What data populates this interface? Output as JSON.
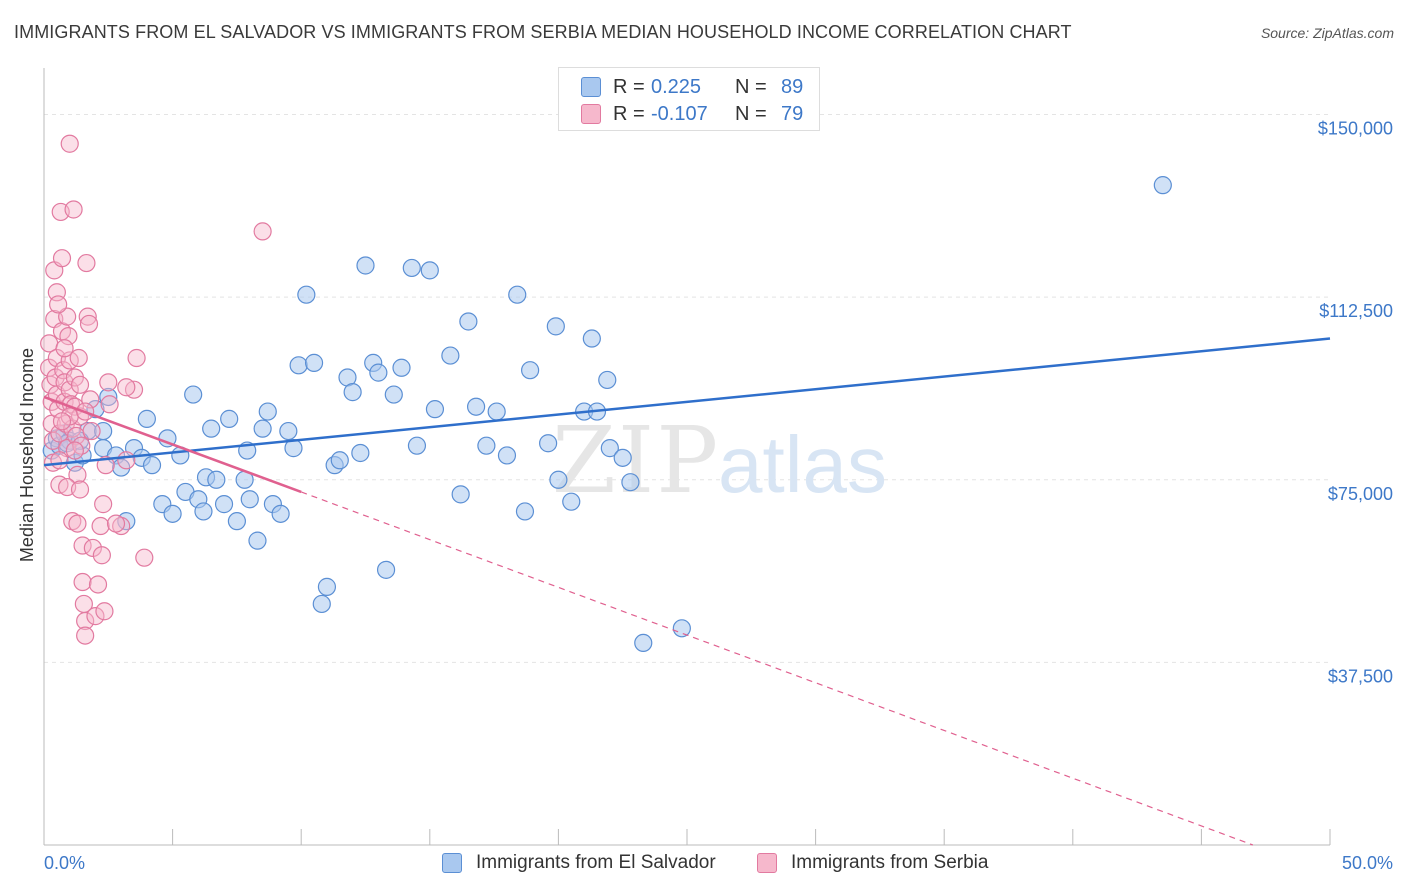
{
  "header": {
    "title": "IMMIGRANTS FROM EL SALVADOR VS IMMIGRANTS FROM SERBIA MEDIAN HOUSEHOLD INCOME CORRELATION CHART",
    "source": "Source: ZipAtlas.com"
  },
  "legend": {
    "r_label": "R =",
    "n_label": "N =",
    "series": [
      {
        "name": "Immigrants from El Salvador",
        "r": "0.225",
        "n": "89"
      },
      {
        "name": "Immigrants from Serbia",
        "r": "-0.107",
        "n": "79"
      }
    ]
  },
  "watermark": {
    "zip": "ZIP",
    "atlas": "atlas"
  },
  "colors": {
    "blue_fill": "#a9c8ef",
    "blue_stroke": "#5b8fd4",
    "blue_line": "#2f6fcb",
    "pink_fill": "#f6b8cc",
    "pink_stroke": "#e27aa0",
    "pink_line": "#e0608f",
    "value_text": "#3d78c8",
    "grid": "#e4e4e4"
  },
  "chart_data": {
    "type": "scatter",
    "title": "IMMIGRANTS FROM EL SALVADOR VS IMMIGRANTS FROM SERBIA MEDIAN HOUSEHOLD INCOME CORRELATION CHART",
    "xlabel": "",
    "ylabel": "Median Household Income",
    "xlim": [
      0,
      50
    ],
    "ylim": [
      0,
      157500
    ],
    "x_tick_labels": {
      "left": "0.0%",
      "right": "50.0%"
    },
    "y_ticks": [
      {
        "value": 150000,
        "label": "$150,000"
      },
      {
        "value": 112500,
        "label": "$112,500"
      },
      {
        "value": 75000,
        "label": "$75,000"
      },
      {
        "value": 37500,
        "label": "$37,500"
      }
    ],
    "grid": "horizontal dashed",
    "legend_position": "top-center",
    "series": [
      {
        "name": "Immigrants from El Salvador",
        "color": "#a9c8ef",
        "trend": {
          "x": [
            0,
            50
          ],
          "y": [
            78000,
            104000
          ],
          "style": "solid"
        },
        "points": [
          [
            0.3,
            81000
          ],
          [
            0.5,
            83500
          ],
          [
            0.6,
            82000
          ],
          [
            0.8,
            84500
          ],
          [
            1.0,
            83000
          ],
          [
            1.2,
            78500
          ],
          [
            1.5,
            80000
          ],
          [
            1.7,
            85000
          ],
          [
            2.0,
            89500
          ],
          [
            2.3,
            81500
          ],
          [
            2.5,
            92000
          ],
          [
            2.8,
            80000
          ],
          [
            3.0,
            77500
          ],
          [
            3.2,
            66500
          ],
          [
            3.5,
            81500
          ],
          [
            3.8,
            79500
          ],
          [
            4.0,
            87500
          ],
          [
            4.2,
            78000
          ],
          [
            4.6,
            70000
          ],
          [
            4.8,
            83500
          ],
          [
            5.0,
            68000
          ],
          [
            5.3,
            80000
          ],
          [
            5.5,
            72500
          ],
          [
            5.8,
            92500
          ],
          [
            6.0,
            71000
          ],
          [
            6.3,
            75500
          ],
          [
            6.5,
            85500
          ],
          [
            6.7,
            75000
          ],
          [
            7.0,
            70000
          ],
          [
            7.2,
            87500
          ],
          [
            7.5,
            66500
          ],
          [
            7.8,
            75000
          ],
          [
            8.0,
            71000
          ],
          [
            8.3,
            62500
          ],
          [
            8.5,
            85500
          ],
          [
            8.7,
            89000
          ],
          [
            8.9,
            70000
          ],
          [
            9.2,
            68000
          ],
          [
            9.5,
            85000
          ],
          [
            9.7,
            81500
          ],
          [
            9.9,
            98500
          ],
          [
            10.2,
            113000
          ],
          [
            10.5,
            99000
          ],
          [
            10.8,
            49500
          ],
          [
            11.0,
            53000
          ],
          [
            11.3,
            78000
          ],
          [
            11.5,
            79000
          ],
          [
            11.8,
            96000
          ],
          [
            12.0,
            93000
          ],
          [
            12.3,
            80500
          ],
          [
            12.5,
            119000
          ],
          [
            12.8,
            99000
          ],
          [
            13.0,
            97000
          ],
          [
            13.3,
            56500
          ],
          [
            13.6,
            92500
          ],
          [
            13.9,
            98000
          ],
          [
            14.3,
            118500
          ],
          [
            14.5,
            82000
          ],
          [
            15.0,
            118000
          ],
          [
            15.2,
            89500
          ],
          [
            15.8,
            100500
          ],
          [
            16.2,
            72000
          ],
          [
            16.5,
            107500
          ],
          [
            16.8,
            90000
          ],
          [
            17.2,
            82000
          ],
          [
            17.6,
            89000
          ],
          [
            18.0,
            80000
          ],
          [
            18.4,
            113000
          ],
          [
            18.7,
            68500
          ],
          [
            18.9,
            97500
          ],
          [
            19.6,
            82500
          ],
          [
            19.9,
            106500
          ],
          [
            20.0,
            75000
          ],
          [
            20.5,
            70500
          ],
          [
            21.0,
            89000
          ],
          [
            21.3,
            104000
          ],
          [
            21.5,
            89000
          ],
          [
            21.9,
            95500
          ],
          [
            22.0,
            81500
          ],
          [
            22.5,
            79500
          ],
          [
            22.8,
            74500
          ],
          [
            23.3,
            41500
          ],
          [
            24.8,
            44500
          ],
          [
            43.5,
            135500
          ],
          [
            2.3,
            85000
          ],
          [
            0.9,
            82500
          ],
          [
            1.4,
            83000
          ],
          [
            6.2,
            68500
          ],
          [
            7.9,
            81000
          ]
        ]
      },
      {
        "name": "Immigrants from Serbia",
        "color": "#f6b8cc",
        "trend": {
          "x": [
            0,
            10
          ],
          "y": [
            92000,
            72500
          ],
          "style": "solid",
          "extended_to": [
            47,
            0
          ],
          "extended_style": "dashed"
        },
        "points": [
          [
            0.2,
            103000
          ],
          [
            0.2,
            98000
          ],
          [
            0.25,
            94500
          ],
          [
            0.3,
            91000
          ],
          [
            0.3,
            86500
          ],
          [
            0.35,
            83000
          ],
          [
            0.4,
            108000
          ],
          [
            0.4,
            118000
          ],
          [
            0.45,
            96000
          ],
          [
            0.5,
            100000
          ],
          [
            0.5,
            92500
          ],
          [
            0.55,
            89500
          ],
          [
            0.6,
            84500
          ],
          [
            0.6,
            74000
          ],
          [
            0.65,
            130000
          ],
          [
            0.7,
            120500
          ],
          [
            0.7,
            105500
          ],
          [
            0.75,
            97500
          ],
          [
            0.8,
            95000
          ],
          [
            0.8,
            91000
          ],
          [
            0.85,
            86500
          ],
          [
            0.9,
            81500
          ],
          [
            0.9,
            108500
          ],
          [
            0.95,
            104500
          ],
          [
            1.0,
            99500
          ],
          [
            1.0,
            93500
          ],
          [
            1.05,
            90500
          ],
          [
            1.1,
            85500
          ],
          [
            1.1,
            66500
          ],
          [
            1.15,
            130500
          ],
          [
            1.2,
            96000
          ],
          [
            1.2,
            90000
          ],
          [
            1.25,
            84000
          ],
          [
            1.3,
            76000
          ],
          [
            1.3,
            66000
          ],
          [
            1.35,
            100000
          ],
          [
            1.4,
            94500
          ],
          [
            1.4,
            88000
          ],
          [
            1.45,
            82000
          ],
          [
            1.5,
            61500
          ],
          [
            1.5,
            54000
          ],
          [
            1.55,
            49500
          ],
          [
            1.6,
            46000
          ],
          [
            1.6,
            43000
          ],
          [
            1.65,
            119500
          ],
          [
            1.7,
            108500
          ],
          [
            1.75,
            107000
          ],
          [
            1.8,
            91500
          ],
          [
            1.85,
            85000
          ],
          [
            1.9,
            61000
          ],
          [
            2.0,
            47000
          ],
          [
            2.1,
            53500
          ],
          [
            2.2,
            65500
          ],
          [
            2.25,
            59500
          ],
          [
            2.3,
            70000
          ],
          [
            2.35,
            48000
          ],
          [
            2.4,
            78000
          ],
          [
            2.5,
            95000
          ],
          [
            2.55,
            90500
          ],
          [
            3.0,
            65500
          ],
          [
            3.2,
            79000
          ],
          [
            3.5,
            93500
          ],
          [
            3.6,
            100000
          ],
          [
            3.9,
            59000
          ],
          [
            8.5,
            126000
          ],
          [
            1.0,
            144000
          ],
          [
            0.5,
            113500
          ],
          [
            0.55,
            111000
          ],
          [
            0.8,
            102000
          ],
          [
            1.0,
            88000
          ],
          [
            1.2,
            81000
          ],
          [
            0.35,
            78500
          ],
          [
            0.6,
            79000
          ],
          [
            1.6,
            89000
          ],
          [
            3.2,
            94000
          ],
          [
            2.8,
            66000
          ],
          [
            0.9,
            73500
          ],
          [
            1.4,
            73000
          ],
          [
            0.7,
            87000
          ]
        ]
      }
    ]
  }
}
